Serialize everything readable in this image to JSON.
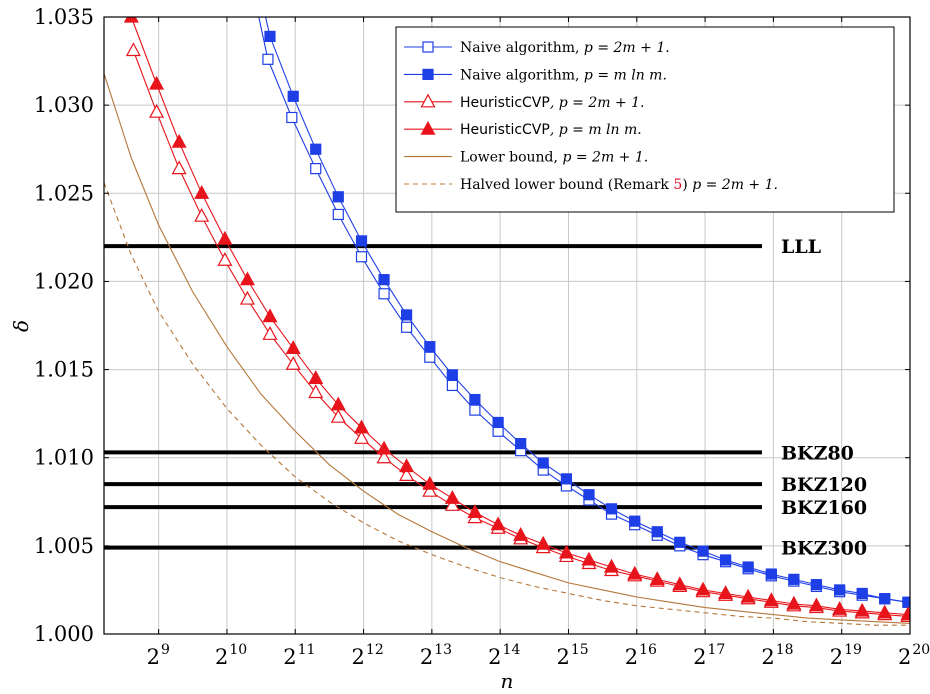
{
  "chart_data": {
    "type": "line",
    "title": "",
    "xlabel": "n",
    "ylabel": "δ",
    "x_scale": "log2",
    "xlim_log2": [
      8.2,
      20
    ],
    "ylim": [
      1.0,
      1.035
    ],
    "grid": true,
    "legend_position": "top-right",
    "x_ticks": [
      {
        "base": "2",
        "exp": "9",
        "log2": 9
      },
      {
        "base": "2",
        "exp": "10",
        "log2": 10
      },
      {
        "base": "2",
        "exp": "11",
        "log2": 11
      },
      {
        "base": "2",
        "exp": "12",
        "log2": 12
      },
      {
        "base": "2",
        "exp": "13",
        "log2": 13
      },
      {
        "base": "2",
        "exp": "14",
        "log2": 14
      },
      {
        "base": "2",
        "exp": "15",
        "log2": 15
      },
      {
        "base": "2",
        "exp": "16",
        "log2": 16
      },
      {
        "base": "2",
        "exp": "17",
        "log2": 17
      },
      {
        "base": "2",
        "exp": "18",
        "log2": 18
      },
      {
        "base": "2",
        "exp": "19",
        "log2": 19
      },
      {
        "base": "2",
        "exp": "20",
        "log2": 20
      }
    ],
    "y_ticks": [
      {
        "label": "1.000",
        "value": 1.0
      },
      {
        "label": "1.005",
        "value": 1.005
      },
      {
        "label": "1.010",
        "value": 1.01
      },
      {
        "label": "1.015",
        "value": 1.015
      },
      {
        "label": "1.020",
        "value": 1.02
      },
      {
        "label": "1.025",
        "value": 1.025
      },
      {
        "label": "1.030",
        "value": 1.03
      },
      {
        "label": "1.035",
        "value": 1.035
      }
    ],
    "reference_lines": [
      {
        "label": "LLL",
        "value": 1.022
      },
      {
        "label": "BKZ80",
        "value": 1.0103
      },
      {
        "label": "BKZ120",
        "value": 1.0085
      },
      {
        "label": "BKZ160",
        "value": 1.0072
      },
      {
        "label": "BKZ300",
        "value": 1.0049
      }
    ],
    "series": [
      {
        "name": "Naive algorithm, p = 2m + 1.",
        "legend": {
          "prefix": "Naive algorithm, ",
          "math": "p = 2m + 1."
        },
        "color": "#1f3fe6",
        "marker": "square-open",
        "line": "solid",
        "x_log2": [
          10.3,
          10.6,
          10.95,
          11.3,
          11.63,
          11.97,
          12.3,
          12.63,
          12.97,
          13.3,
          13.63,
          13.97,
          14.3,
          14.63,
          14.97,
          15.3,
          15.63,
          15.97,
          16.3,
          16.63,
          16.97,
          17.3,
          17.63,
          17.97,
          18.3,
          18.63,
          18.97,
          19.3,
          19.63,
          19.97
        ],
        "values": [
          1.038,
          1.0326,
          1.0293,
          1.0264,
          1.0238,
          1.0214,
          1.0193,
          1.0174,
          1.0157,
          1.0141,
          1.0127,
          1.0115,
          1.0104,
          1.0093,
          1.0084,
          1.0076,
          1.0068,
          1.0062,
          1.0056,
          1.005,
          1.0045,
          1.0041,
          1.0037,
          1.0033,
          1.003,
          1.0027,
          1.0024,
          1.0022,
          1.002,
          1.0018
        ]
      },
      {
        "name": "Naive algorithm, p = m ln m.",
        "legend": {
          "prefix": "Naive algorithm, ",
          "math": "p = m ln m."
        },
        "color": "#1f3fe6",
        "marker": "square",
        "line": "solid",
        "x_log2": [
          10.3,
          10.63,
          10.97,
          11.3,
          11.63,
          11.97,
          12.3,
          12.63,
          12.97,
          13.3,
          13.63,
          13.97,
          14.3,
          14.63,
          14.97,
          15.3,
          15.63,
          15.97,
          16.3,
          16.63,
          16.97,
          17.3,
          17.63,
          17.97,
          18.3,
          18.63,
          18.97,
          19.3,
          19.63,
          19.97
        ],
        "values": [
          1.0395,
          1.0339,
          1.0305,
          1.0275,
          1.0248,
          1.0223,
          1.0201,
          1.0181,
          1.0163,
          1.0147,
          1.0133,
          1.012,
          1.0108,
          1.0097,
          1.0088,
          1.0079,
          1.0071,
          1.0064,
          1.0058,
          1.0052,
          1.0047,
          1.0042,
          1.0038,
          1.0034,
          1.0031,
          1.0028,
          1.0025,
          1.0023,
          1.002,
          1.0018
        ]
      },
      {
        "name": "HeuristicCVP, p = 2m + 1.",
        "legend": {
          "prefix": "HeuristicCVP",
          "math": ", p = 2m + 1."
        },
        "color": "#e8141c",
        "marker": "triangle-open",
        "line": "solid",
        "x_log2": [
          8.63,
          8.97,
          9.3,
          9.63,
          9.97,
          10.3,
          10.63,
          10.97,
          11.3,
          11.63,
          11.97,
          12.3,
          12.63,
          12.97,
          13.3,
          13.63,
          13.97,
          14.3,
          14.63,
          14.97,
          15.3,
          15.63,
          15.97,
          16.3,
          16.63,
          16.97,
          17.3,
          17.63,
          17.97,
          18.3,
          18.63,
          18.97,
          19.3,
          19.63,
          19.97
        ],
        "values": [
          1.0331,
          1.0296,
          1.0264,
          1.0237,
          1.0212,
          1.019,
          1.017,
          1.0153,
          1.0137,
          1.0123,
          1.0111,
          1.01,
          1.009,
          1.0081,
          1.0073,
          1.0066,
          1.006,
          1.0054,
          1.0049,
          1.0044,
          1.004,
          1.0036,
          1.0033,
          1.003,
          1.0027,
          1.0024,
          1.0022,
          1.002,
          1.0018,
          1.0016,
          1.0015,
          1.0013,
          1.0012,
          1.0011,
          1.001
        ]
      },
      {
        "name": "HeuristicCVP, p = m ln m.",
        "legend": {
          "prefix": "HeuristicCVP",
          "math": ", p = m ln m."
        },
        "color": "#e8141c",
        "marker": "triangle",
        "line": "solid",
        "x_log2": [
          8.6,
          8.97,
          9.3,
          9.63,
          9.97,
          10.3,
          10.63,
          10.97,
          11.3,
          11.63,
          11.97,
          12.3,
          12.63,
          12.97,
          13.3,
          13.63,
          13.97,
          14.3,
          14.63,
          14.97,
          15.3,
          15.63,
          15.97,
          16.3,
          16.63,
          16.97,
          17.3,
          17.63,
          17.97,
          18.3,
          18.63,
          18.97,
          19.3,
          19.63,
          19.97
        ],
        "values": [
          1.035,
          1.0312,
          1.0279,
          1.025,
          1.0224,
          1.0201,
          1.018,
          1.0162,
          1.0145,
          1.013,
          1.0117,
          1.0105,
          1.0095,
          1.0085,
          1.0077,
          1.0069,
          1.0062,
          1.0056,
          1.0051,
          1.0046,
          1.0042,
          1.0038,
          1.0034,
          1.0031,
          1.0028,
          1.0025,
          1.0023,
          1.0021,
          1.0019,
          1.0017,
          1.0016,
          1.0014,
          1.0013,
          1.0012,
          1.0011
        ]
      },
      {
        "name": "Lower bound, p = 2m + 1.",
        "legend": {
          "prefix": "Lower bound, ",
          "math": "p = 2m + 1."
        },
        "color": "#b5773a",
        "marker": "none",
        "line": "solid",
        "x_log2": [
          8.2,
          8.6,
          9.0,
          9.5,
          10.0,
          10.5,
          11.0,
          11.5,
          12.0,
          12.5,
          13.0,
          13.5,
          14.0,
          14.5,
          15.0,
          15.5,
          16.0,
          16.5,
          17.0,
          17.5,
          18.0,
          18.5,
          19.0,
          19.5,
          20.0
        ],
        "values": [
          1.0318,
          1.027,
          1.0232,
          1.0194,
          1.0163,
          1.0136,
          1.0115,
          1.0096,
          1.0081,
          1.0068,
          1.0058,
          1.0049,
          1.0041,
          1.0035,
          1.0029,
          1.0025,
          1.0021,
          1.0018,
          1.0015,
          1.0013,
          1.0011,
          1.0009,
          1.0008,
          1.0007,
          1.0006
        ]
      },
      {
        "name": "Halved lower bound (Remark 5) p = 2m + 1.",
        "legend": {
          "prefix": "Halved lower bound (Remark ",
          "ref": "5",
          "suffix": ") ",
          "math": "p = 2m + 1."
        },
        "color": "#b5773a",
        "marker": "none",
        "line": "dashed",
        "x_log2": [
          8.2,
          8.6,
          9.0,
          9.5,
          10.0,
          10.5,
          11.0,
          11.5,
          12.0,
          12.5,
          13.0,
          13.5,
          14.0,
          14.5,
          15.0,
          15.5,
          16.0,
          16.5,
          17.0,
          17.5,
          18.0,
          18.5,
          19.0,
          19.5,
          20.0
        ],
        "values": [
          1.0256,
          1.0215,
          1.0183,
          1.0153,
          1.0128,
          1.0107,
          1.0089,
          1.0075,
          1.0063,
          1.0053,
          1.0045,
          1.0038,
          1.0032,
          1.0027,
          1.0023,
          1.0019,
          1.0016,
          1.0014,
          1.0012,
          1.001,
          1.0009,
          1.0007,
          1.0006,
          1.0005,
          1.0005
        ]
      }
    ]
  }
}
